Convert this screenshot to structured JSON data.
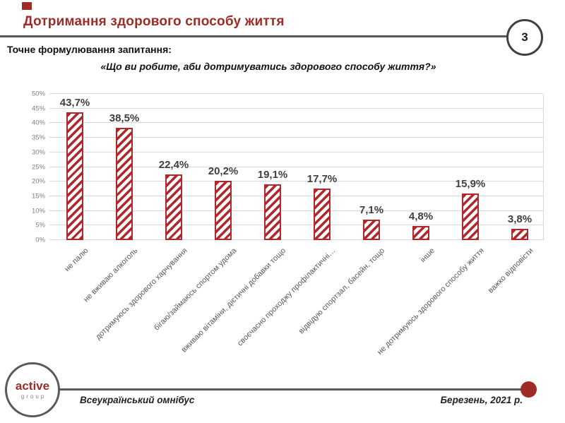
{
  "slide": {
    "page_number": "3",
    "title": "Дотримання здорового способу життя",
    "subtitle": "Точне формулювання запитання:",
    "question": "«Що ви робите, аби дотримуватись здорового способу життя?»",
    "footer": {
      "left": "Всеукраїнський омнібус",
      "right": "Березень, 2021 р."
    },
    "logo": {
      "line1": "active",
      "line2": "group"
    }
  },
  "colors": {
    "accent_red": "#9e2b25",
    "bar_red": "#b2262c",
    "line_gray": "#595959",
    "grid_gray": "#d9d9d9",
    "tick_gray": "#7f7f7f",
    "label_gray": "#595959",
    "value_dark": "#3f3f3f"
  },
  "chart_data": {
    "type": "bar",
    "title": "",
    "xlabel": "",
    "ylabel": "",
    "categories": [
      "не палю",
      "не вживаю алкоголь",
      "дотримуюсь здорового харчування",
      "бігаю/займаюсь спортом удома",
      "вживаю вітаміни, дієтичні добавки тощо",
      "своєчасно проходжу профілактичні…",
      "відвідую спортзал, басейн, тощо",
      "інше",
      "не дотримуюсь здорового способу життя",
      "важко відповісти"
    ],
    "values": [
      43.7,
      38.5,
      22.4,
      20.2,
      19.1,
      17.7,
      7.1,
      4.8,
      15.9,
      3.8
    ],
    "value_labels": [
      "43,7%",
      "38,5%",
      "22,4%",
      "20,2%",
      "19,1%",
      "17,7%",
      "7,1%",
      "4,8%",
      "15,9%",
      "3,8%"
    ],
    "ylim": [
      0,
      50
    ],
    "ytick_step": 5,
    "ytick_labels": [
      "0%",
      "5%",
      "10%",
      "15%",
      "20%",
      "25%",
      "30%",
      "35%",
      "40%",
      "45%",
      "50%"
    ],
    "grid": true,
    "legend": "none",
    "bar_style": "diagonal-hatch"
  }
}
